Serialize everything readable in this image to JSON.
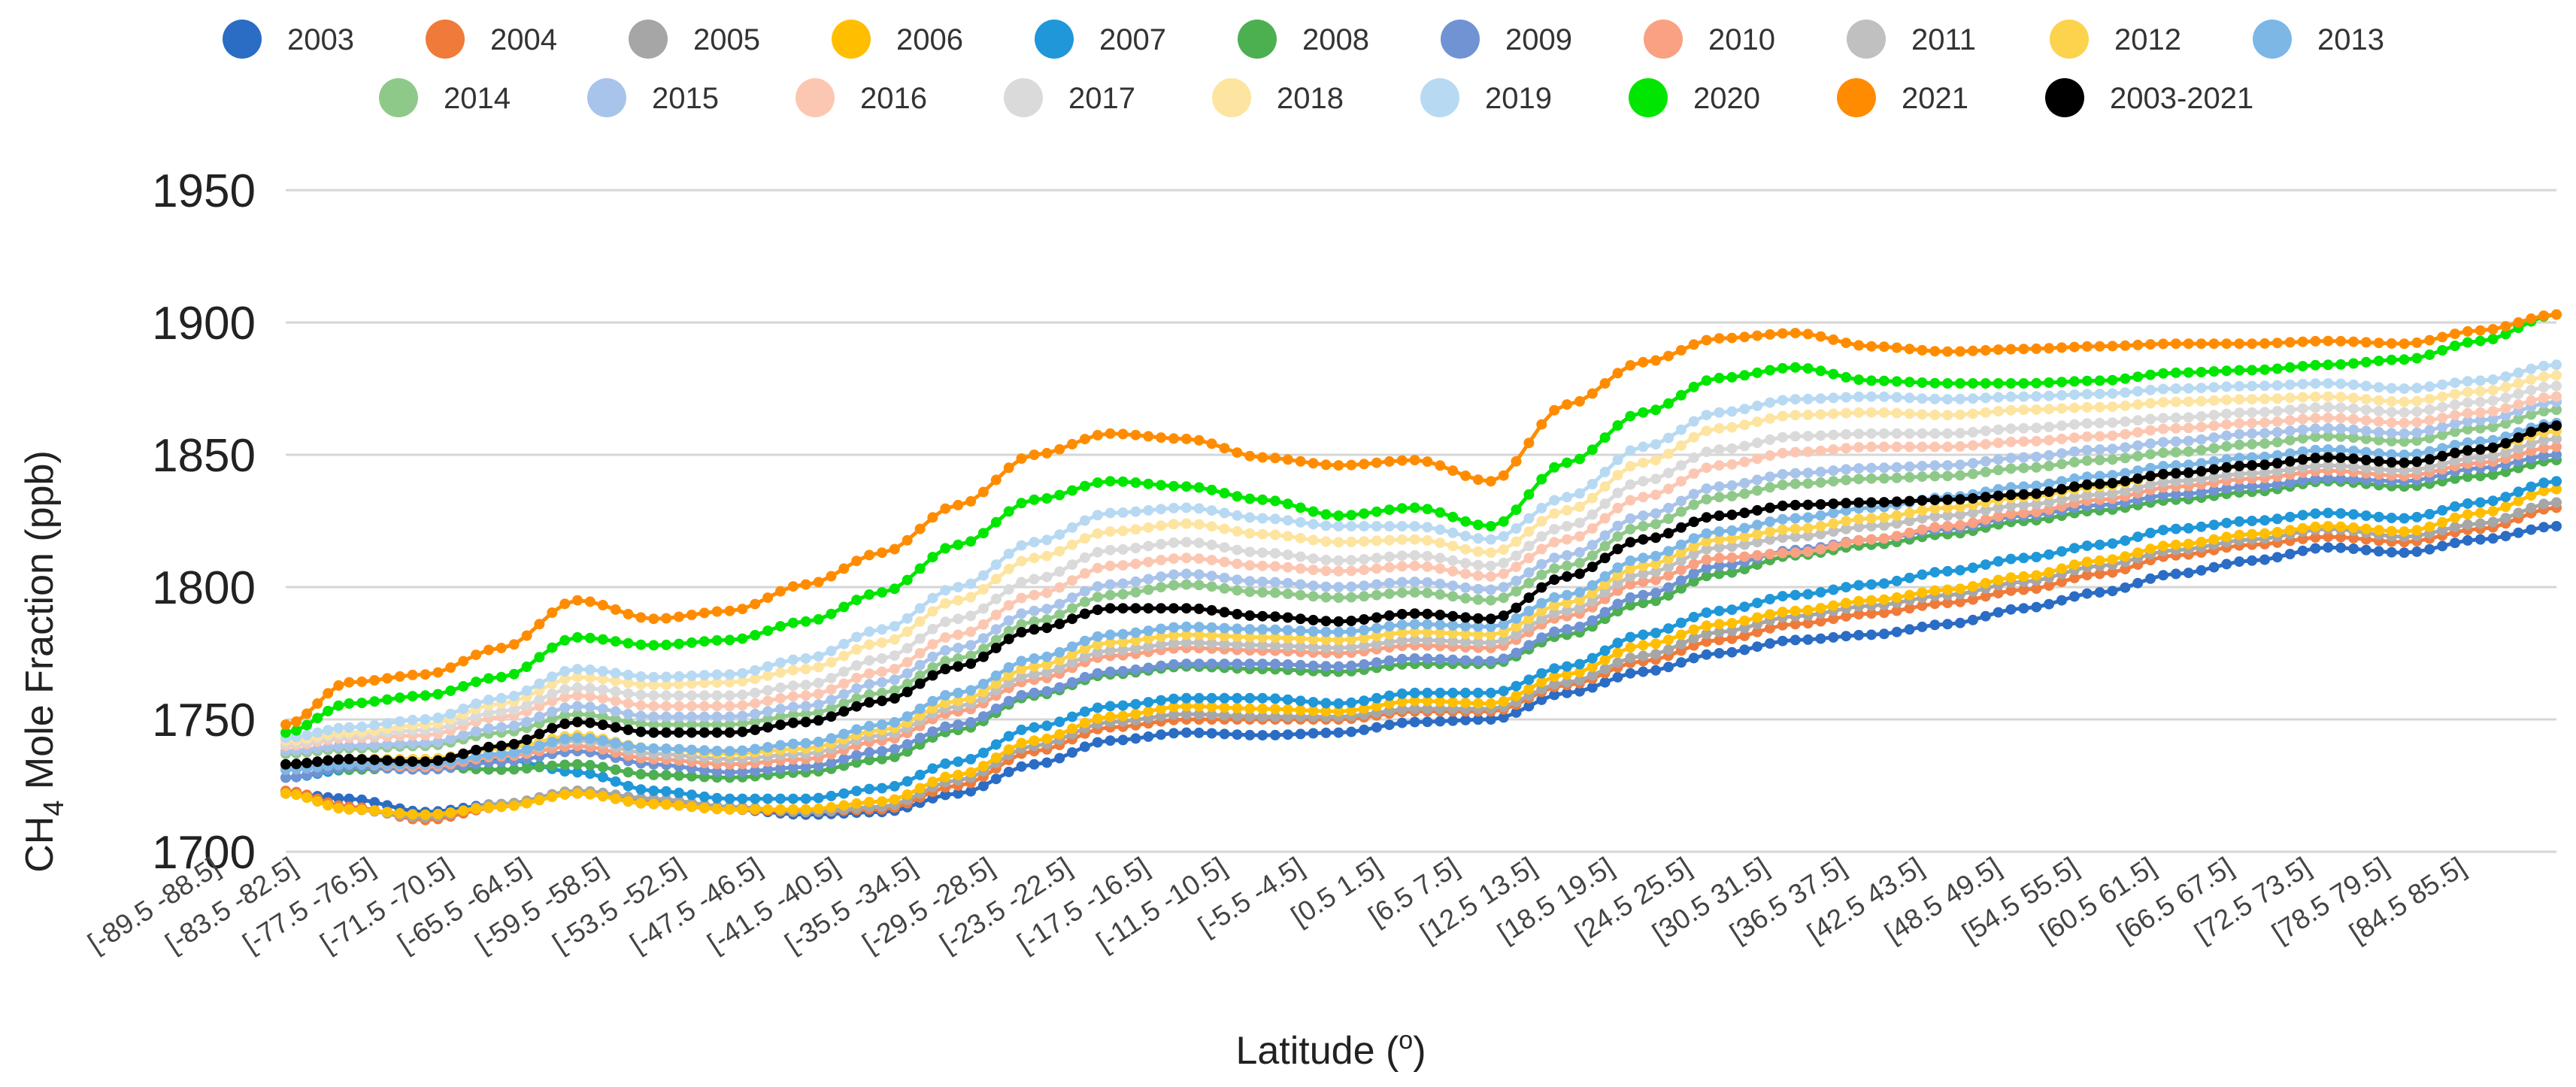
{
  "chart_data": {
    "type": "line",
    "title": "",
    "xlabel": "Latitude (°)",
    "xlabel_text": "Latitude (",
    "xlabel_degree": "o",
    "xlabel_close": ")",
    "ylabel_main": "CH",
    "ylabel_sub": "4",
    "ylabel_rest": " Mole Fraction (ppb)",
    "ylim": [
      1700,
      1950
    ],
    "yticks": [
      1700,
      1750,
      1800,
      1850,
      1900,
      1950
    ],
    "grid": true,
    "legend_position": "top",
    "x_tick_labels": [
      "[-89.5 -88.5]",
      "[-83.5 -82.5]",
      "[-77.5 -76.5]",
      "[-71.5 -70.5]",
      "[-65.5 -64.5]",
      "[-59.5 -58.5]",
      "[-53.5 -52.5]",
      "[-47.5 -46.5]",
      "[-41.5 -40.5]",
      "[-35.5 -34.5]",
      "[-29.5 -28.5]",
      "[-23.5 -22.5]",
      "[-17.5 -16.5]",
      "[-11.5 -10.5]",
      "[-5.5 -4.5]",
      "[0.5 1.5]",
      "[6.5 7.5]",
      "[12.5 13.5]",
      "[18.5 19.5]",
      "[24.5 25.5]",
      "[30.5 31.5]",
      "[36.5 37.5]",
      "[42.5 43.5]",
      "[48.5 49.5]",
      "[54.5 55.5]",
      "[60.5 61.5]",
      "[66.5 67.5]",
      "[72.5 73.5]",
      "[78.5 79.5]",
      "[84.5 85.5]"
    ],
    "x": [
      -89,
      -84,
      -78,
      -72,
      -66,
      -60,
      -54,
      -48,
      -42,
      -36,
      -30,
      -24,
      -18,
      -12,
      -6,
      0,
      6,
      12,
      18,
      24,
      30,
      36,
      42,
      48,
      54,
      60,
      66,
      72,
      78,
      84,
      90
    ],
    "series": [
      {
        "name": "2003",
        "color": "#2b6cc4",
        "values": [
          1722,
          1720,
          1715,
          1718,
          1722,
          1718,
          1716,
          1714,
          1715,
          1722,
          1733,
          1742,
          1745,
          1744,
          1745,
          1749,
          1750,
          1760,
          1768,
          1775,
          1780,
          1782,
          1786,
          1792,
          1798,
          1805,
          1810,
          1815,
          1813,
          1818,
          1823
        ]
      },
      {
        "name": "2004",
        "color": "#f07a3a",
        "values": [
          1723,
          1717,
          1712,
          1717,
          1723,
          1719,
          1716,
          1715,
          1716,
          1725,
          1738,
          1747,
          1750,
          1750,
          1750,
          1753,
          1753,
          1763,
          1772,
          1780,
          1786,
          1790,
          1794,
          1799,
          1805,
          1812,
          1816,
          1819,
          1817,
          1822,
          1830
        ]
      },
      {
        "name": "2005",
        "color": "#a6a6a6",
        "values": [
          1722,
          1716,
          1713,
          1718,
          1723,
          1720,
          1717,
          1715,
          1717,
          1727,
          1740,
          1749,
          1752,
          1751,
          1751,
          1754,
          1754,
          1764,
          1774,
          1783,
          1789,
          1793,
          1797,
          1802,
          1808,
          1814,
          1818,
          1822,
          1819,
          1824,
          1832
        ]
      },
      {
        "name": "2006",
        "color": "#ffbf00",
        "values": [
          1722,
          1716,
          1714,
          1717,
          1722,
          1718,
          1716,
          1716,
          1719,
          1729,
          1742,
          1751,
          1755,
          1754,
          1753,
          1757,
          1756,
          1767,
          1778,
          1786,
          1791,
          1795,
          1799,
          1804,
          1810,
          1816,
          1820,
          1823,
          1821,
          1828,
          1837
        ]
      },
      {
        "name": "2007",
        "color": "#1f97d8",
        "values": [
          1728,
          1731,
          1733,
          1735,
          1730,
          1723,
          1720,
          1720,
          1724,
          1734,
          1747,
          1755,
          1758,
          1758,
          1756,
          1760,
          1760,
          1770,
          1782,
          1791,
          1797,
          1801,
          1806,
          1811,
          1816,
          1822,
          1825,
          1828,
          1826,
          1832,
          1840
        ]
      },
      {
        "name": "2008",
        "color": "#4caf50",
        "values": [
          1733,
          1731,
          1732,
          1731,
          1733,
          1729,
          1728,
          1730,
          1735,
          1746,
          1759,
          1767,
          1770,
          1769,
          1768,
          1771,
          1771,
          1782,
          1794,
          1805,
          1812,
          1816,
          1820,
          1825,
          1829,
          1833,
          1836,
          1840,
          1838,
          1842,
          1848
        ]
      },
      {
        "name": "2009",
        "color": "#6f93d3",
        "values": [
          1728,
          1732,
          1731,
          1734,
          1738,
          1733,
          1730,
          1732,
          1738,
          1748,
          1760,
          1768,
          1771,
          1771,
          1770,
          1773,
          1772,
          1784,
          1797,
          1808,
          1814,
          1818,
          1822,
          1827,
          1831,
          1835,
          1838,
          1841,
          1840,
          1845,
          1850
        ]
      },
      {
        "name": "2010",
        "color": "#f9a182",
        "values": [
          1731,
          1733,
          1732,
          1736,
          1740,
          1735,
          1733,
          1735,
          1742,
          1753,
          1765,
          1774,
          1777,
          1776,
          1775,
          1778,
          1777,
          1789,
          1802,
          1811,
          1813,
          1818,
          1823,
          1828,
          1833,
          1838,
          1841,
          1844,
          1842,
          1847,
          1853
        ]
      },
      {
        "name": "2011",
        "color": "#c0c0c0",
        "values": [
          1732,
          1734,
          1733,
          1737,
          1742,
          1737,
          1735,
          1737,
          1744,
          1755,
          1767,
          1776,
          1779,
          1778,
          1777,
          1780,
          1779,
          1791,
          1805,
          1815,
          1819,
          1823,
          1827,
          1831,
          1835,
          1840,
          1843,
          1846,
          1844,
          1849,
          1856
        ]
      },
      {
        "name": "2012",
        "color": "#fcd34d",
        "values": [
          1733,
          1735,
          1735,
          1739,
          1744,
          1739,
          1737,
          1739,
          1746,
          1757,
          1770,
          1779,
          1782,
          1781,
          1780,
          1783,
          1782,
          1794,
          1808,
          1818,
          1822,
          1826,
          1830,
          1834,
          1838,
          1843,
          1846,
          1849,
          1847,
          1852,
          1859
        ]
      },
      {
        "name": "2013",
        "color": "#7cb7e6",
        "values": [
          1731,
          1733,
          1733,
          1737,
          1743,
          1739,
          1738,
          1741,
          1748,
          1760,
          1773,
          1782,
          1785,
          1784,
          1783,
          1786,
          1785,
          1797,
          1811,
          1821,
          1826,
          1830,
          1834,
          1838,
          1842,
          1846,
          1849,
          1852,
          1850,
          1855,
          1862
        ]
      },
      {
        "name": "2014",
        "color": "#8fc98a",
        "values": [
          1737,
          1739,
          1740,
          1745,
          1752,
          1748,
          1748,
          1752,
          1760,
          1773,
          1787,
          1797,
          1801,
          1798,
          1796,
          1798,
          1795,
          1808,
          1823,
          1834,
          1839,
          1841,
          1842,
          1845,
          1848,
          1851,
          1854,
          1857,
          1855,
          1860,
          1867
        ]
      },
      {
        "name": "2015",
        "color": "#a9c4ea",
        "values": [
          1738,
          1740,
          1741,
          1747,
          1755,
          1751,
          1751,
          1755,
          1764,
          1777,
          1791,
          1801,
          1805,
          1802,
          1800,
          1802,
          1799,
          1812,
          1827,
          1838,
          1843,
          1845,
          1846,
          1849,
          1852,
          1855,
          1858,
          1860,
          1858,
          1863,
          1870
        ]
      },
      {
        "name": "2016",
        "color": "#fcc7b2",
        "values": [
          1740,
          1743,
          1744,
          1751,
          1759,
          1755,
          1755,
          1759,
          1768,
          1782,
          1797,
          1808,
          1811,
          1808,
          1806,
          1808,
          1804,
          1818,
          1834,
          1846,
          1851,
          1853,
          1853,
          1855,
          1857,
          1860,
          1862,
          1864,
          1862,
          1866,
          1872
        ]
      },
      {
        "name": "2017",
        "color": "#dadada",
        "values": [
          1741,
          1744,
          1746,
          1753,
          1762,
          1759,
          1759,
          1763,
          1773,
          1788,
          1803,
          1814,
          1817,
          1813,
          1810,
          1812,
          1808,
          1823,
          1840,
          1852,
          1857,
          1858,
          1858,
          1860,
          1862,
          1864,
          1866,
          1868,
          1866,
          1870,
          1876
        ]
      },
      {
        "name": "2018",
        "color": "#fde4a0",
        "values": [
          1742,
          1745,
          1748,
          1756,
          1766,
          1763,
          1764,
          1769,
          1779,
          1795,
          1811,
          1821,
          1824,
          1820,
          1817,
          1818,
          1813,
          1829,
          1847,
          1860,
          1865,
          1866,
          1865,
          1867,
          1868,
          1870,
          1871,
          1872,
          1870,
          1874,
          1880
        ]
      },
      {
        "name": "2019",
        "color": "#b8d9f2",
        "values": [
          1743,
          1747,
          1750,
          1758,
          1769,
          1766,
          1767,
          1773,
          1784,
          1800,
          1817,
          1828,
          1830,
          1826,
          1823,
          1823,
          1818,
          1834,
          1853,
          1866,
          1871,
          1872,
          1871,
          1872,
          1873,
          1875,
          1876,
          1877,
          1875,
          1878,
          1884
        ]
      },
      {
        "name": "2020",
        "color": "#00e600",
        "values": [
          1745,
          1756,
          1759,
          1766,
          1781,
          1778,
          1780,
          1787,
          1798,
          1816,
          1833,
          1840,
          1838,
          1833,
          1827,
          1830,
          1823,
          1847,
          1866,
          1879,
          1883,
          1878,
          1877,
          1877,
          1878,
          1881,
          1882,
          1884,
          1886,
          1893,
          1903
        ]
      },
      {
        "name": "2021",
        "color": "#ff8c00",
        "values": [
          1748,
          1764,
          1767,
          1777,
          1795,
          1788,
          1791,
          1801,
          1813,
          1831,
          1850,
          1858,
          1856,
          1849,
          1846,
          1848,
          1840,
          1869,
          1885,
          1894,
          1896,
          1891,
          1889,
          1890,
          1891,
          1892,
          1892,
          1893,
          1892,
          1897,
          1903
        ]
      },
      {
        "name": "2003-2021",
        "color": "#000000",
        "values": [
          1733,
          1735,
          1734,
          1740,
          1749,
          1745,
          1745,
          1749,
          1757,
          1770,
          1784,
          1792,
          1792,
          1789,
          1787,
          1790,
          1788,
          1804,
          1818,
          1827,
          1831,
          1832,
          1833,
          1835,
          1839,
          1843,
          1846,
          1849,
          1847,
          1852,
          1861
        ]
      }
    ]
  }
}
